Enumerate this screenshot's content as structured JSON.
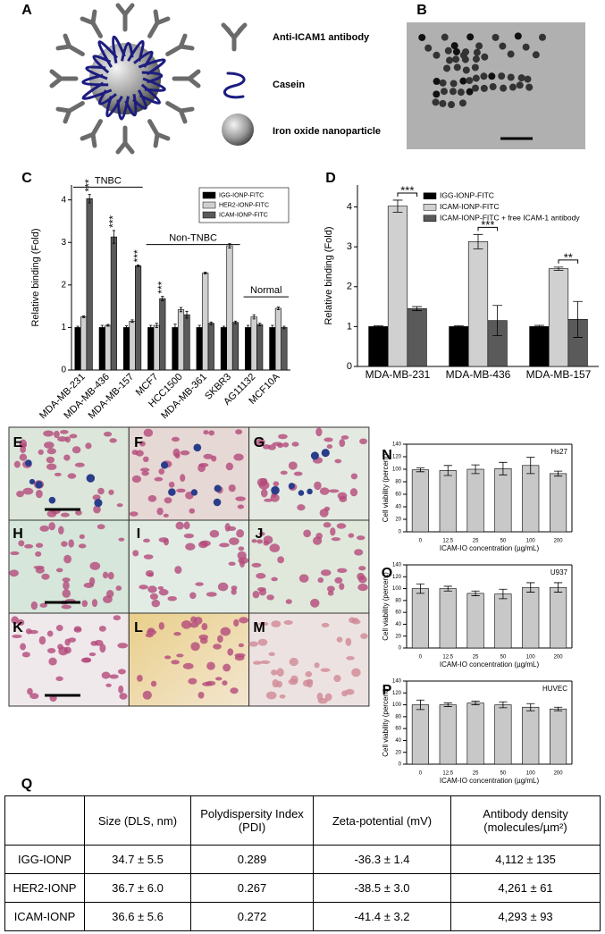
{
  "panel_labels": [
    "A",
    "B",
    "C",
    "D",
    "E",
    "F",
    "G",
    "H",
    "I",
    "J",
    "K",
    "L",
    "M",
    "N",
    "O",
    "P",
    "Q"
  ],
  "diagram": {
    "legend": [
      "Anti-ICAM1 antibody",
      "Casein",
      "Iron oxide nanoparticle"
    ]
  },
  "chart_data": [
    {
      "type": "bar",
      "ylabel": "Relative binding (Fold)",
      "categories": [
        "MDA-MB-231",
        "MDA-MB-436",
        "MDA-MB-157",
        "MCF7",
        "HCC1500",
        "MDA-MB-361",
        "SKBR3",
        "AG11132",
        "MCF10A"
      ],
      "series": [
        {
          "name": "IGG-IONP-FITC",
          "color": "#000000",
          "values": [
            1,
            1,
            1,
            1,
            1,
            1,
            1,
            1,
            1
          ],
          "errors": [
            0.03,
            0.05,
            0.04,
            0.05,
            0.08,
            0.05,
            0.03,
            0.05,
            0.05
          ]
        },
        {
          "name": "HER2-IONP-FITC",
          "color": "#d0d0d0",
          "values": [
            1.25,
            1.05,
            1.15,
            1.05,
            1.42,
            2.28,
            2.92,
            1.25,
            1.45
          ],
          "errors": [
            0.02,
            0.02,
            0.03,
            0.05,
            0.05,
            0.02,
            0.05,
            0.05,
            0.03
          ]
        },
        {
          "name": "ICAM-IONP-FITC",
          "color": "#5a5a5a",
          "values": [
            4.03,
            3.13,
            2.45,
            1.68,
            1.3,
            1.1,
            1.12,
            1.07,
            1.0
          ],
          "errors": [
            0.1,
            0.15,
            0.02,
            0.05,
            0.08,
            0.03,
            0.03,
            0.03,
            0.03
          ]
        }
      ],
      "ylim": [
        0,
        4.35
      ],
      "yticks": [
        0,
        1,
        2,
        3,
        4
      ],
      "legend": "upper right",
      "annotations": [
        "TNBC",
        "Non-TNBC",
        "Normal"
      ],
      "significance": [
        "***",
        "***",
        "***",
        "***"
      ]
    },
    {
      "type": "bar",
      "ylabel": "Relative binding (Fold)",
      "categories": [
        "MDA-MB-231",
        "MDA-MB-436",
        "MDA-MB-157"
      ],
      "series": [
        {
          "name": "IGG-IONP-FITC",
          "color": "#000000",
          "values": [
            1,
            1,
            1
          ],
          "errors": [
            0.02,
            0.02,
            0.03
          ]
        },
        {
          "name": "ICAM-IONP-FITC",
          "color": "#d0d0d0",
          "values": [
            4.02,
            3.13,
            2.45
          ],
          "errors": [
            0.15,
            0.18,
            0.04
          ]
        },
        {
          "name": "ICAM-IONP-FITC + free ICAM-1 antibody",
          "color": "#5a5a5a",
          "values": [
            1.45,
            1.15,
            1.18
          ],
          "errors": [
            0.05,
            0.38,
            0.45
          ]
        }
      ],
      "ylim": [
        0,
        4.55
      ],
      "yticks": [
        0,
        1,
        2,
        3,
        4
      ],
      "legend": "upper left",
      "significance": [
        "***",
        "***",
        "**"
      ]
    },
    {
      "type": "bar",
      "label": "Hs27",
      "xlabel": "ICAM-IO concentration (µg/mL)",
      "ylabel": "Cell viability (percent)",
      "categories": [
        "0",
        "12.5",
        "25",
        "50",
        "100",
        "200"
      ],
      "values": [
        99,
        98,
        100,
        101,
        106,
        93
      ],
      "errors": [
        3,
        8,
        7,
        10,
        13,
        4
      ],
      "color": "#c8c8c8",
      "ylim": [
        0,
        140
      ],
      "yticks": [
        0,
        20,
        40,
        60,
        80,
        100,
        120,
        140
      ]
    },
    {
      "type": "bar",
      "label": "U937",
      "xlabel": "ICAM-IO concentration (µg/mL)",
      "ylabel": "Cell viability (percent)",
      "categories": [
        "0",
        "12.5",
        "25",
        "50",
        "100",
        "200"
      ],
      "values": [
        100,
        100,
        92,
        91,
        102,
        102
      ],
      "errors": [
        8,
        4,
        4,
        8,
        8,
        8
      ],
      "color": "#c8c8c8",
      "ylim": [
        0,
        140
      ],
      "yticks": [
        0,
        20,
        40,
        60,
        80,
        100,
        120,
        140
      ]
    },
    {
      "type": "bar",
      "label": "HUVEC",
      "xlabel": "ICAM-IO concentration (µg/mL)",
      "ylabel": "Cell viability (percent)",
      "categories": [
        "0",
        "12.5",
        "25",
        "50",
        "100",
        "200"
      ],
      "values": [
        100,
        100,
        103,
        100,
        96,
        93
      ],
      "errors": [
        8,
        3,
        3,
        5,
        6,
        3
      ],
      "color": "#c8c8c8",
      "ylim": [
        0,
        140
      ],
      "yticks": [
        0,
        20,
        40,
        60,
        80,
        100,
        120,
        140
      ]
    }
  ],
  "table": {
    "header": [
      "Size (DLS, nm)",
      "Polydispersity Index (PDI)",
      "Zeta-potential (mV)",
      "Antibody density (molecules/µm²)"
    ],
    "rows": [
      [
        "IGG-IONP",
        "34.7 ± 5.5",
        "0.289",
        "-36.3 ± 1.4",
        "4,112 ± 135"
      ],
      [
        "HER2-IONP",
        "36.7 ± 6.0",
        "0.267",
        "-38.5 ± 3.0",
        "4,261 ± 61"
      ],
      [
        "ICAM-IONP",
        "36.6 ± 5.6",
        "0.272",
        "-41.4 ± 3.2",
        "4,293 ± 93"
      ]
    ]
  }
}
